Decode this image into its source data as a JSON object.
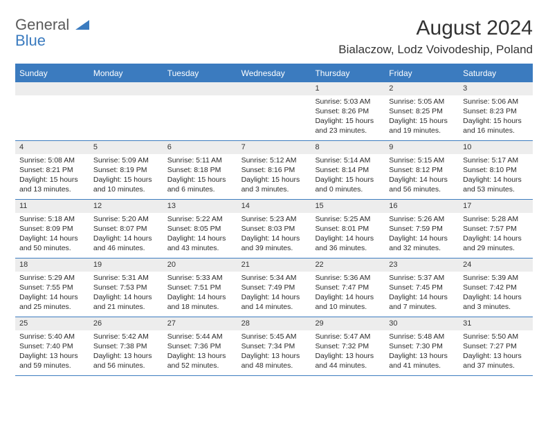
{
  "logo": {
    "line1": "General",
    "line2": "Blue"
  },
  "title": "August 2024",
  "location": "Bialaczow, Lodz Voivodeship, Poland",
  "colors": {
    "accent": "#3b7bbf",
    "daynum_bg": "#ededed",
    "text": "#2a2a2a",
    "bg": "#ffffff"
  },
  "day_headers": [
    "Sunday",
    "Monday",
    "Tuesday",
    "Wednesday",
    "Thursday",
    "Friday",
    "Saturday"
  ],
  "weeks": [
    [
      {},
      {},
      {},
      {},
      {
        "d": "1",
        "sr": "Sunrise: 5:03 AM",
        "ss": "Sunset: 8:26 PM",
        "dl1": "Daylight: 15 hours",
        "dl2": "and 23 minutes."
      },
      {
        "d": "2",
        "sr": "Sunrise: 5:05 AM",
        "ss": "Sunset: 8:25 PM",
        "dl1": "Daylight: 15 hours",
        "dl2": "and 19 minutes."
      },
      {
        "d": "3",
        "sr": "Sunrise: 5:06 AM",
        "ss": "Sunset: 8:23 PM",
        "dl1": "Daylight: 15 hours",
        "dl2": "and 16 minutes."
      }
    ],
    [
      {
        "d": "4",
        "sr": "Sunrise: 5:08 AM",
        "ss": "Sunset: 8:21 PM",
        "dl1": "Daylight: 15 hours",
        "dl2": "and 13 minutes."
      },
      {
        "d": "5",
        "sr": "Sunrise: 5:09 AM",
        "ss": "Sunset: 8:19 PM",
        "dl1": "Daylight: 15 hours",
        "dl2": "and 10 minutes."
      },
      {
        "d": "6",
        "sr": "Sunrise: 5:11 AM",
        "ss": "Sunset: 8:18 PM",
        "dl1": "Daylight: 15 hours",
        "dl2": "and 6 minutes."
      },
      {
        "d": "7",
        "sr": "Sunrise: 5:12 AM",
        "ss": "Sunset: 8:16 PM",
        "dl1": "Daylight: 15 hours",
        "dl2": "and 3 minutes."
      },
      {
        "d": "8",
        "sr": "Sunrise: 5:14 AM",
        "ss": "Sunset: 8:14 PM",
        "dl1": "Daylight: 15 hours",
        "dl2": "and 0 minutes."
      },
      {
        "d": "9",
        "sr": "Sunrise: 5:15 AM",
        "ss": "Sunset: 8:12 PM",
        "dl1": "Daylight: 14 hours",
        "dl2": "and 56 minutes."
      },
      {
        "d": "10",
        "sr": "Sunrise: 5:17 AM",
        "ss": "Sunset: 8:10 PM",
        "dl1": "Daylight: 14 hours",
        "dl2": "and 53 minutes."
      }
    ],
    [
      {
        "d": "11",
        "sr": "Sunrise: 5:18 AM",
        "ss": "Sunset: 8:09 PM",
        "dl1": "Daylight: 14 hours",
        "dl2": "and 50 minutes."
      },
      {
        "d": "12",
        "sr": "Sunrise: 5:20 AM",
        "ss": "Sunset: 8:07 PM",
        "dl1": "Daylight: 14 hours",
        "dl2": "and 46 minutes."
      },
      {
        "d": "13",
        "sr": "Sunrise: 5:22 AM",
        "ss": "Sunset: 8:05 PM",
        "dl1": "Daylight: 14 hours",
        "dl2": "and 43 minutes."
      },
      {
        "d": "14",
        "sr": "Sunrise: 5:23 AM",
        "ss": "Sunset: 8:03 PM",
        "dl1": "Daylight: 14 hours",
        "dl2": "and 39 minutes."
      },
      {
        "d": "15",
        "sr": "Sunrise: 5:25 AM",
        "ss": "Sunset: 8:01 PM",
        "dl1": "Daylight: 14 hours",
        "dl2": "and 36 minutes."
      },
      {
        "d": "16",
        "sr": "Sunrise: 5:26 AM",
        "ss": "Sunset: 7:59 PM",
        "dl1": "Daylight: 14 hours",
        "dl2": "and 32 minutes."
      },
      {
        "d": "17",
        "sr": "Sunrise: 5:28 AM",
        "ss": "Sunset: 7:57 PM",
        "dl1": "Daylight: 14 hours",
        "dl2": "and 29 minutes."
      }
    ],
    [
      {
        "d": "18",
        "sr": "Sunrise: 5:29 AM",
        "ss": "Sunset: 7:55 PM",
        "dl1": "Daylight: 14 hours",
        "dl2": "and 25 minutes."
      },
      {
        "d": "19",
        "sr": "Sunrise: 5:31 AM",
        "ss": "Sunset: 7:53 PM",
        "dl1": "Daylight: 14 hours",
        "dl2": "and 21 minutes."
      },
      {
        "d": "20",
        "sr": "Sunrise: 5:33 AM",
        "ss": "Sunset: 7:51 PM",
        "dl1": "Daylight: 14 hours",
        "dl2": "and 18 minutes."
      },
      {
        "d": "21",
        "sr": "Sunrise: 5:34 AM",
        "ss": "Sunset: 7:49 PM",
        "dl1": "Daylight: 14 hours",
        "dl2": "and 14 minutes."
      },
      {
        "d": "22",
        "sr": "Sunrise: 5:36 AM",
        "ss": "Sunset: 7:47 PM",
        "dl1": "Daylight: 14 hours",
        "dl2": "and 10 minutes."
      },
      {
        "d": "23",
        "sr": "Sunrise: 5:37 AM",
        "ss": "Sunset: 7:45 PM",
        "dl1": "Daylight: 14 hours",
        "dl2": "and 7 minutes."
      },
      {
        "d": "24",
        "sr": "Sunrise: 5:39 AM",
        "ss": "Sunset: 7:42 PM",
        "dl1": "Daylight: 14 hours",
        "dl2": "and 3 minutes."
      }
    ],
    [
      {
        "d": "25",
        "sr": "Sunrise: 5:40 AM",
        "ss": "Sunset: 7:40 PM",
        "dl1": "Daylight: 13 hours",
        "dl2": "and 59 minutes."
      },
      {
        "d": "26",
        "sr": "Sunrise: 5:42 AM",
        "ss": "Sunset: 7:38 PM",
        "dl1": "Daylight: 13 hours",
        "dl2": "and 56 minutes."
      },
      {
        "d": "27",
        "sr": "Sunrise: 5:44 AM",
        "ss": "Sunset: 7:36 PM",
        "dl1": "Daylight: 13 hours",
        "dl2": "and 52 minutes."
      },
      {
        "d": "28",
        "sr": "Sunrise: 5:45 AM",
        "ss": "Sunset: 7:34 PM",
        "dl1": "Daylight: 13 hours",
        "dl2": "and 48 minutes."
      },
      {
        "d": "29",
        "sr": "Sunrise: 5:47 AM",
        "ss": "Sunset: 7:32 PM",
        "dl1": "Daylight: 13 hours",
        "dl2": "and 44 minutes."
      },
      {
        "d": "30",
        "sr": "Sunrise: 5:48 AM",
        "ss": "Sunset: 7:30 PM",
        "dl1": "Daylight: 13 hours",
        "dl2": "and 41 minutes."
      },
      {
        "d": "31",
        "sr": "Sunrise: 5:50 AM",
        "ss": "Sunset: 7:27 PM",
        "dl1": "Daylight: 13 hours",
        "dl2": "and 37 minutes."
      }
    ]
  ]
}
